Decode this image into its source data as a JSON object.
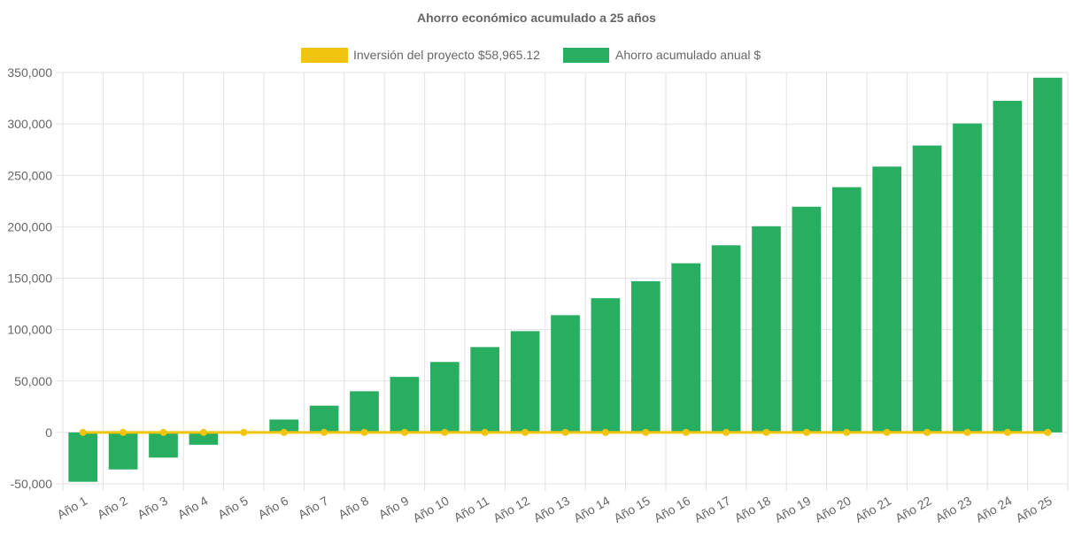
{
  "chart_data": {
    "type": "bar",
    "title": "Ahorro económico acumulado a 25 años",
    "categories": [
      "Año 1",
      "Año 2",
      "Año 3",
      "Año 4",
      "Año 5",
      "Año 6",
      "Año 7",
      "Año 8",
      "Año 9",
      "Año 10",
      "Año 11",
      "Año 12",
      "Año 13",
      "Año 14",
      "Año 15",
      "Año 16",
      "Año 17",
      "Año 18",
      "Año 19",
      "Año 20",
      "Año 21",
      "Año 22",
      "Año 23",
      "Año 24",
      "Año 25"
    ],
    "series": [
      {
        "name": "Inversión del proyecto $58,965.12",
        "type": "line",
        "color": "#f1c40f",
        "values": [
          0,
          0,
          0,
          0,
          0,
          0,
          0,
          0,
          0,
          0,
          0,
          0,
          0,
          0,
          0,
          0,
          0,
          0,
          0,
          0,
          0,
          0,
          0,
          0,
          0
        ]
      },
      {
        "name": "Ahorro acumulado anual $",
        "type": "bar",
        "color": "#27ae60",
        "values": [
          -48000,
          -36000,
          -24500,
          -12000,
          0,
          12500,
          26000,
          40000,
          54000,
          68500,
          83000,
          98500,
          114000,
          130500,
          147000,
          164500,
          182000,
          200500,
          219500,
          238500,
          258500,
          279000,
          300500,
          322500,
          345000
        ]
      }
    ],
    "ylim": [
      -50000,
      350000
    ],
    "yticks": [
      "350,000",
      "300,000",
      "250,000",
      "200,000",
      "150,000",
      "100,000",
      "50,000",
      "0",
      "-50,000"
    ],
    "ytick_values": [
      350000,
      300000,
      250000,
      200000,
      150000,
      100000,
      50000,
      0,
      -50000
    ],
    "legend": "top-center",
    "grid": true
  }
}
